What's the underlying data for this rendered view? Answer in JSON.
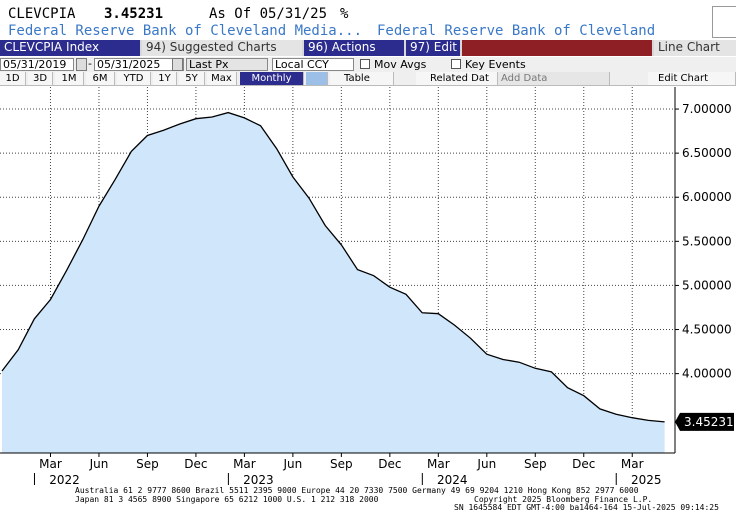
{
  "header": {
    "ticker": "CLEVCPIA",
    "value": "3.45231",
    "as_of": "As Of 05/31/25",
    "unit": "%",
    "source_1": "Federal Reserve Bank of Cleveland Media...",
    "source_2": "Federal Reserve Bank of Cleveland"
  },
  "toolbar": {
    "index_label": "CLEVCPIA Index",
    "suggested_label": "94) Suggested Charts",
    "actions_label": "96) Actions",
    "edit_label": "97) Edit",
    "line_chart_label": "Line Chart",
    "start_date": "05/31/2019",
    "end_date": "05/31/2025",
    "price_field": "Last Px",
    "currency": "Local CCY",
    "mov_avgs_label": "Mov Avgs",
    "key_events_label": "Key Events",
    "ranges": [
      "1D",
      "3D",
      "1M",
      "6M",
      "YTD",
      "1Y",
      "5Y",
      "Max"
    ],
    "period": "Monthly",
    "table_label": "Table",
    "related_label": "Related Dat",
    "add_data_label": "Add Data",
    "edit_chart_label": "Edit Chart"
  },
  "colors": {
    "area_fill": "#cfe6fb",
    "line": "#000000",
    "background": "#ffffff",
    "source_text": "#3a78c8",
    "toolbar_active": "#2c2c8e"
  },
  "chart_data": {
    "type": "area",
    "x": [
      "2021-12",
      "2022-01",
      "2022-02",
      "2022-03",
      "2022-04",
      "2022-05",
      "2022-06",
      "2022-07",
      "2022-08",
      "2022-09",
      "2022-10",
      "2022-11",
      "2022-12",
      "2023-01",
      "2023-02",
      "2023-03",
      "2023-04",
      "2023-05",
      "2023-06",
      "2023-07",
      "2023-08",
      "2023-09",
      "2023-10",
      "2023-11",
      "2023-12",
      "2024-01",
      "2024-02",
      "2024-03",
      "2024-04",
      "2024-05",
      "2024-06",
      "2024-07",
      "2024-08",
      "2024-09",
      "2024-10",
      "2024-11",
      "2024-12",
      "2025-01",
      "2025-02",
      "2025-03",
      "2025-04",
      "2025-05"
    ],
    "values": [
      4.03,
      4.27,
      4.62,
      4.84,
      5.17,
      5.52,
      5.9,
      6.2,
      6.52,
      6.7,
      6.76,
      6.83,
      6.89,
      6.91,
      6.96,
      6.9,
      6.81,
      6.55,
      6.23,
      5.99,
      5.68,
      5.46,
      5.18,
      5.11,
      4.98,
      4.9,
      4.69,
      4.68,
      4.55,
      4.4,
      4.22,
      4.16,
      4.13,
      4.06,
      4.02,
      3.84,
      3.75,
      3.6,
      3.54,
      3.5,
      3.47,
      3.45231
    ],
    "ylim": [
      3.1,
      7.25
    ],
    "yticks": [
      4.0,
      4.5,
      5.0,
      5.5,
      6.0,
      6.5,
      7.0
    ],
    "ytick_labels": [
      "4.00000",
      "4.50000",
      "5.00000",
      "5.50000",
      "6.00000",
      "6.50000",
      "7.00000"
    ],
    "xtick_labels": [
      {
        "month": "Mar",
        "date": "2022-03",
        "year": "2022"
      },
      {
        "month": "Jun",
        "date": "2022-06",
        "year": ""
      },
      {
        "month": "Sep",
        "date": "2022-09",
        "year": ""
      },
      {
        "month": "Dec",
        "date": "2022-12",
        "year": ""
      },
      {
        "month": "Mar",
        "date": "2023-03",
        "year": "2023"
      },
      {
        "month": "Jun",
        "date": "2023-06",
        "year": ""
      },
      {
        "month": "Sep",
        "date": "2023-09",
        "year": ""
      },
      {
        "month": "Dec",
        "date": "2023-12",
        "year": ""
      },
      {
        "month": "Mar",
        "date": "2024-03",
        "year": "2024"
      },
      {
        "month": "Jun",
        "date": "2024-06",
        "year": ""
      },
      {
        "month": "Sep",
        "date": "2024-09",
        "year": ""
      },
      {
        "month": "Dec",
        "date": "2024-12",
        "year": ""
      },
      {
        "month": "Mar",
        "date": "2025-03",
        "year": "2025"
      }
    ],
    "last_value_label": "3.45231",
    "grid": true,
    "title": "",
    "xlabel": "",
    "ylabel": ""
  },
  "footer": {
    "line1": "Australia 61 2 9777 8600 Brazil 5511 2395 9000 Europe 44 20 7330 7500 Germany 49 69 9204 1210 Hong Kong 852 2977 6000",
    "line2": "Japan 81 3 4565 8900       Singapore 65 6212 1000        U.S. 1 212 318 2000",
    "copyright": "Copyright 2025 Bloomberg Finance L.P.",
    "session": "SN 1645584 EDT  GMT-4:00 ba1464-164 15-Jul-2025 09:14:25"
  }
}
